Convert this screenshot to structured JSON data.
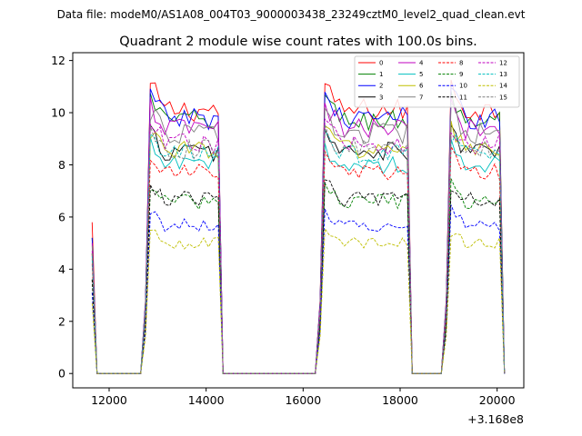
{
  "chart_data": {
    "type": "line",
    "suptitle": "Data file: modeM0/AS1A08_004T03_9000003438_23249cztM0_level2_quad_clean.evt",
    "title": "Quadrant 2 module wise count rates with 100.0s bins.",
    "xlabel": "",
    "ylabel": "",
    "x_offset_label": "+3.168e8",
    "xlim": [
      11250,
      20550
    ],
    "ylim": [
      -0.55,
      12.3
    ],
    "xticks": [
      12000,
      14000,
      16000,
      18000,
      20000
    ],
    "xtick_labels": [
      "12000",
      "14000",
      "16000",
      "18000",
      "20000"
    ],
    "yticks": [
      0,
      2,
      4,
      6,
      8,
      10,
      12
    ],
    "ytick_labels": [
      "0",
      "2",
      "4",
      "6",
      "8",
      "10",
      "12"
    ],
    "grid": false,
    "legend_position": "top-right",
    "series": [
      {
        "name": "0",
        "color": "#ff0000",
        "dash": "solid",
        "base": 10.1,
        "init": 5.8
      },
      {
        "name": "1",
        "color": "#008000",
        "dash": "solid",
        "base": 9.7,
        "init": 5.2
      },
      {
        "name": "2",
        "color": "#0000ff",
        "dash": "solid",
        "base": 9.8,
        "init": 5.2
      },
      {
        "name": "3",
        "color": "#000000",
        "dash": "solid",
        "base": 8.5,
        "init": 4.6
      },
      {
        "name": "4",
        "color": "#bf00bf",
        "dash": "solid",
        "base": 9.4,
        "init": 5.0
      },
      {
        "name": "5",
        "color": "#00bfbf",
        "dash": "solid",
        "base": 8.0,
        "init": 4.4
      },
      {
        "name": "6",
        "color": "#bfbf00",
        "dash": "solid",
        "base": 8.6,
        "init": 4.6
      },
      {
        "name": "7",
        "color": "#808080",
        "dash": "solid",
        "base": 9.2,
        "init": 4.9
      },
      {
        "name": "8",
        "color": "#ff0000",
        "dash": "dashed",
        "base": 7.7,
        "init": 4.2
      },
      {
        "name": "9",
        "color": "#008000",
        "dash": "dashed",
        "base": 6.6,
        "init": 3.6
      },
      {
        "name": "10",
        "color": "#0000ff",
        "dash": "dashed",
        "base": 5.7,
        "init": 3.1
      },
      {
        "name": "11",
        "color": "#000000",
        "dash": "dashed",
        "base": 6.7,
        "init": 3.6
      },
      {
        "name": "12",
        "color": "#bf00bf",
        "dash": "dashed",
        "base": 8.8,
        "init": 4.7
      },
      {
        "name": "13",
        "color": "#00bfbf",
        "dash": "dashed",
        "base": 8.4,
        "init": 4.5
      },
      {
        "name": "14",
        "color": "#bfbf00",
        "dash": "dashed",
        "base": 5.0,
        "init": 2.7
      },
      {
        "name": "15",
        "color": "#808080",
        "dash": "dashed",
        "base": 8.6,
        "init": 4.6
      }
    ],
    "segments": [
      {
        "start": 11650,
        "end": 11750,
        "kind": "spike"
      },
      {
        "start": 11750,
        "end": 12750,
        "kind": "zero"
      },
      {
        "start": 12750,
        "end": 14350,
        "kind": "on"
      },
      {
        "start": 14350,
        "end": 16350,
        "kind": "zero"
      },
      {
        "start": 16350,
        "end": 18250,
        "kind": "on"
      },
      {
        "start": 18250,
        "end": 18950,
        "kind": "zero"
      },
      {
        "start": 18950,
        "end": 20150,
        "kind": "on"
      }
    ]
  }
}
